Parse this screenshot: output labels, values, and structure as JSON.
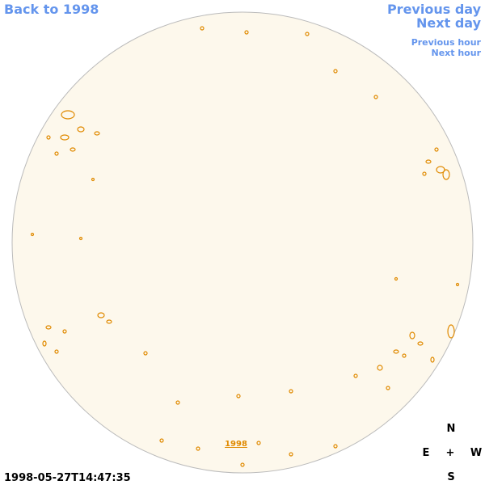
{
  "nav": {
    "back": "Back to 1998",
    "previous_day": "Previous day",
    "next_day": "Next day",
    "previous_hour": "Previous hour",
    "next_hour": "Next hour"
  },
  "image": {
    "year_link": "1998",
    "timestamp": "1998-05-27T14:47:35"
  },
  "compass": {
    "north": "N",
    "east": "E",
    "center": "+",
    "west": "W",
    "south": "S"
  }
}
